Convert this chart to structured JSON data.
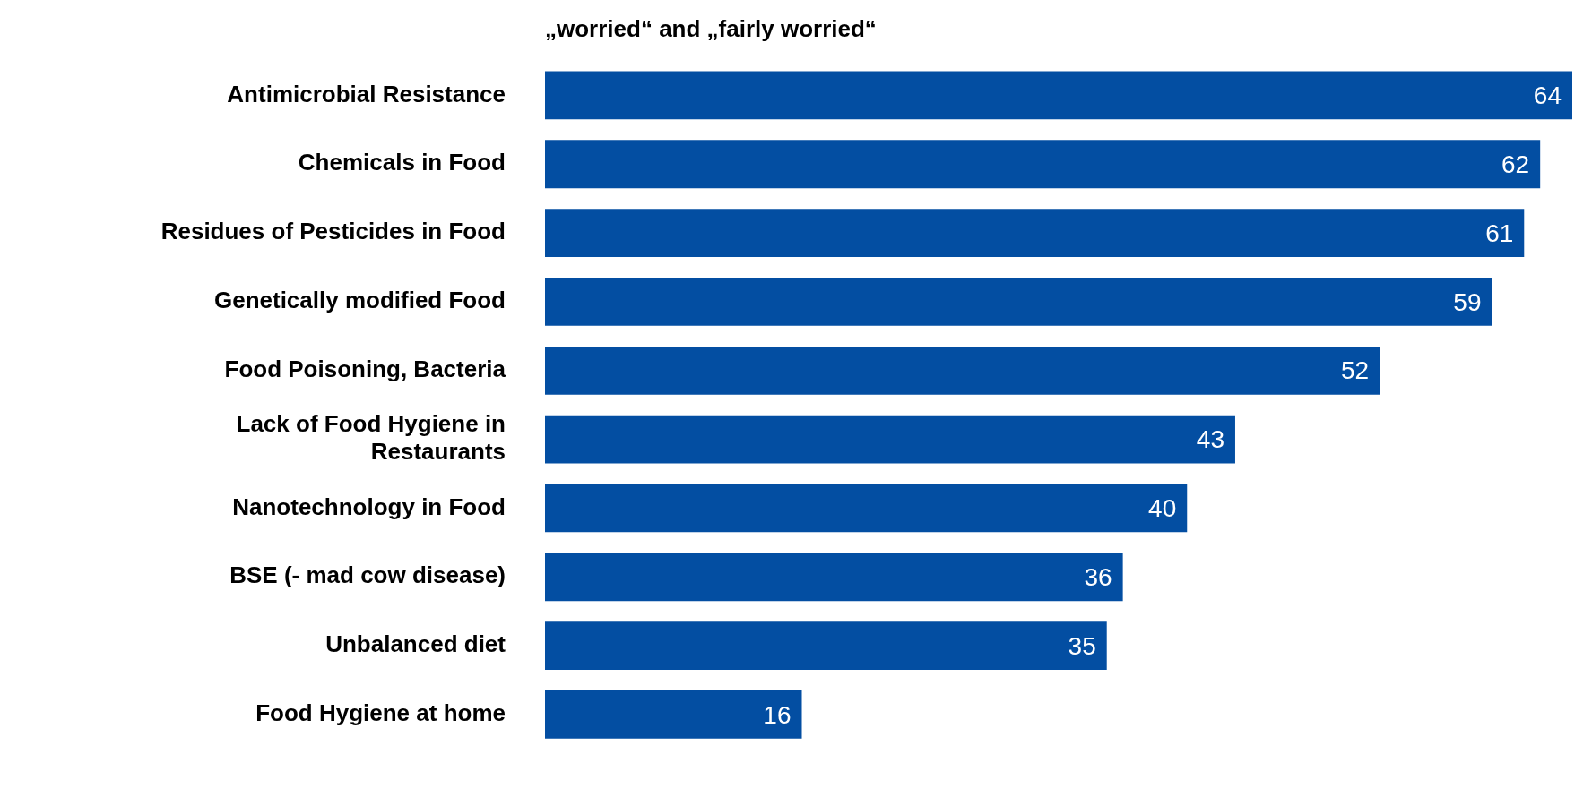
{
  "chart_data": {
    "type": "bar",
    "orientation": "horizontal",
    "title": "„worried“ and „fairly worried“",
    "categories": [
      "Antimicrobial Resistance",
      "Chemicals in Food",
      "Residues of Pesticides in Food",
      "Genetically modified Food",
      "Food Poisoning, Bacteria",
      "Lack of Food Hygiene in Restaurants",
      "Nanotechnology in Food",
      "BSE (- mad cow disease)",
      "Unbalanced diet",
      "Food Hygiene at home"
    ],
    "values": [
      64,
      62,
      61,
      59,
      52,
      43,
      40,
      36,
      35,
      16
    ],
    "color": "#034ea2",
    "data_labels": true,
    "legend": false
  }
}
